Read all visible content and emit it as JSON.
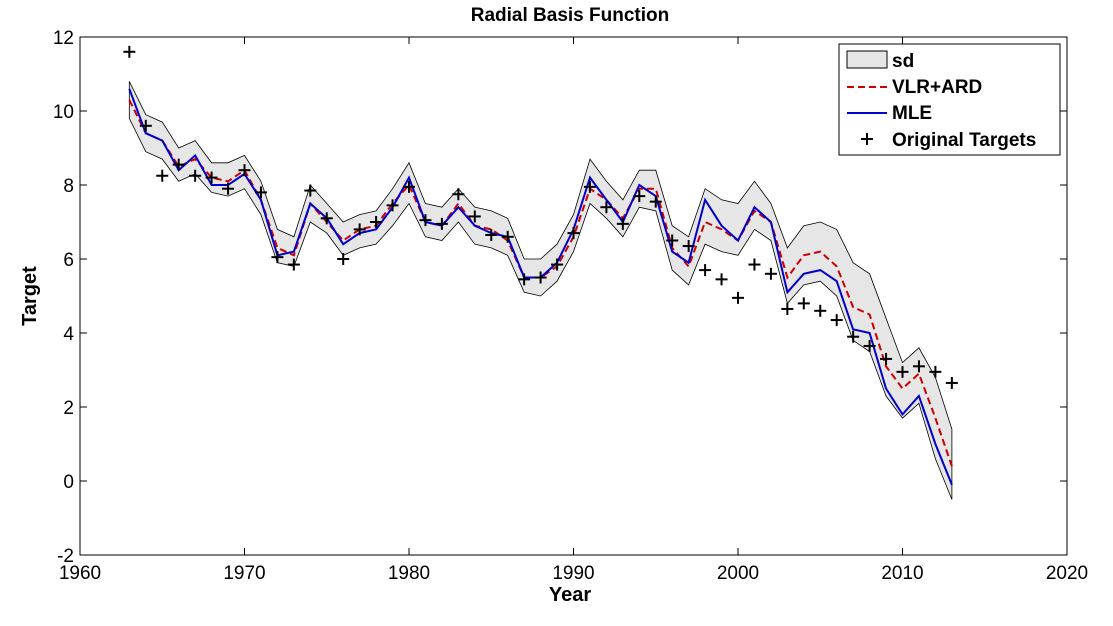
{
  "chart_data": {
    "type": "line",
    "title": "Radial Basis Function",
    "xlabel": "Year",
    "ylabel": "Target",
    "xlim": [
      1960,
      2020
    ],
    "ylim": [
      -2,
      12
    ],
    "xticks": [
      1960,
      1970,
      1980,
      1990,
      2000,
      2010,
      2020
    ],
    "yticks": [
      -2,
      0,
      2,
      4,
      6,
      8,
      10,
      12
    ],
    "grid": false,
    "legend_position": "top-right",
    "x": [
      1963,
      1964,
      1965,
      1966,
      1967,
      1968,
      1969,
      1970,
      1971,
      1972,
      1973,
      1974,
      1975,
      1976,
      1977,
      1978,
      1979,
      1980,
      1981,
      1982,
      1983,
      1984,
      1985,
      1986,
      1987,
      1988,
      1989,
      1990,
      1991,
      1992,
      1993,
      1994,
      1995,
      1996,
      1997,
      1998,
      1999,
      2000,
      2001,
      2002,
      2003,
      2004,
      2005,
      2006,
      2007,
      2008,
      2009,
      2010,
      2011,
      2012,
      2013
    ],
    "series": [
      {
        "name": "VLR+ARD",
        "style": "dashed",
        "color": "#cc0000",
        "values": [
          10.3,
          9.4,
          9.2,
          8.5,
          8.7,
          8.2,
          8.1,
          8.4,
          7.6,
          6.3,
          6.1,
          7.5,
          7.0,
          6.5,
          6.8,
          6.9,
          7.5,
          8.0,
          7.0,
          6.9,
          7.5,
          6.9,
          6.8,
          6.5,
          5.5,
          5.5,
          5.8,
          6.6,
          7.9,
          7.6,
          7.1,
          7.9,
          7.9,
          6.3,
          5.8,
          7.0,
          6.8,
          6.5,
          7.3,
          7.0,
          5.5,
          6.1,
          6.2,
          5.8,
          4.7,
          4.5,
          3.1,
          2.5,
          2.9,
          1.7,
          0.4
        ]
      },
      {
        "name": "MLE",
        "style": "solid",
        "color": "#0000cc",
        "values": [
          10.6,
          9.4,
          9.2,
          8.4,
          8.8,
          8.0,
          8.0,
          8.3,
          7.6,
          6.1,
          6.2,
          7.5,
          7.1,
          6.4,
          6.7,
          6.8,
          7.4,
          8.2,
          7.0,
          6.9,
          7.4,
          6.9,
          6.7,
          6.6,
          5.5,
          5.5,
          5.9,
          6.8,
          8.2,
          7.6,
          7.0,
          8.0,
          7.7,
          6.2,
          5.9,
          7.6,
          6.9,
          6.5,
          7.4,
          7.0,
          5.1,
          5.6,
          5.7,
          5.4,
          4.1,
          4.0,
          2.5,
          1.8,
          2.3,
          1.0,
          -0.1
        ]
      },
      {
        "name": "Original Targets",
        "style": "markers",
        "color": "#000000",
        "values": [
          11.6,
          9.6,
          8.25,
          8.55,
          8.25,
          8.2,
          7.9,
          8.4,
          7.8,
          6.05,
          5.85,
          7.85,
          7.1,
          6.0,
          6.8,
          7.0,
          7.45,
          7.95,
          7.05,
          6.95,
          7.75,
          7.15,
          6.65,
          6.6,
          5.45,
          5.5,
          5.85,
          6.7,
          7.95,
          7.4,
          6.95,
          7.7,
          7.55,
          6.5,
          6.35,
          5.7,
          5.45,
          4.95,
          5.85,
          5.6,
          4.65,
          4.8,
          4.6,
          4.35,
          3.9,
          3.65,
          3.3,
          2.95,
          3.1,
          2.95,
          2.65
        ]
      }
    ],
    "band": {
      "name": "sd",
      "fill": "#e6e6e6",
      "upper": [
        10.8,
        9.9,
        9.7,
        9.0,
        9.2,
        8.6,
        8.6,
        8.8,
        8.1,
        6.8,
        6.6,
        8.0,
        7.5,
        7.0,
        7.2,
        7.3,
        7.9,
        8.6,
        7.5,
        7.4,
        7.9,
        7.4,
        7.3,
        7.1,
        6.0,
        6.0,
        6.4,
        7.2,
        8.7,
        8.1,
        7.6,
        8.4,
        8.4,
        6.9,
        6.6,
        7.9,
        7.6,
        7.5,
        8.1,
        7.5,
        6.3,
        6.9,
        7.0,
        6.8,
        5.9,
        5.6,
        4.4,
        3.2,
        3.6,
        2.8,
        1.4
      ],
      "lower": [
        9.8,
        8.9,
        8.7,
        8.1,
        8.3,
        7.8,
        7.7,
        7.9,
        7.2,
        5.9,
        5.8,
        7.0,
        6.7,
        6.1,
        6.3,
        6.4,
        6.9,
        7.5,
        6.6,
        6.5,
        7.0,
        6.4,
        6.3,
        6.1,
        5.1,
        5.0,
        5.4,
        6.2,
        7.5,
        7.1,
        6.6,
        7.4,
        7.3,
        5.7,
        5.3,
        6.4,
        6.2,
        6.1,
        6.8,
        6.5,
        4.8,
        5.3,
        5.4,
        5.0,
        3.8,
        3.5,
        2.3,
        1.7,
        2.1,
        0.6,
        -0.5
      ]
    },
    "legend": [
      {
        "label": "sd",
        "marker": "patch"
      },
      {
        "label": "VLR+ARD",
        "marker": "dashed-line"
      },
      {
        "label": "MLE",
        "marker": "solid-line"
      },
      {
        "label": "Original Targets",
        "marker": "plus"
      }
    ]
  }
}
